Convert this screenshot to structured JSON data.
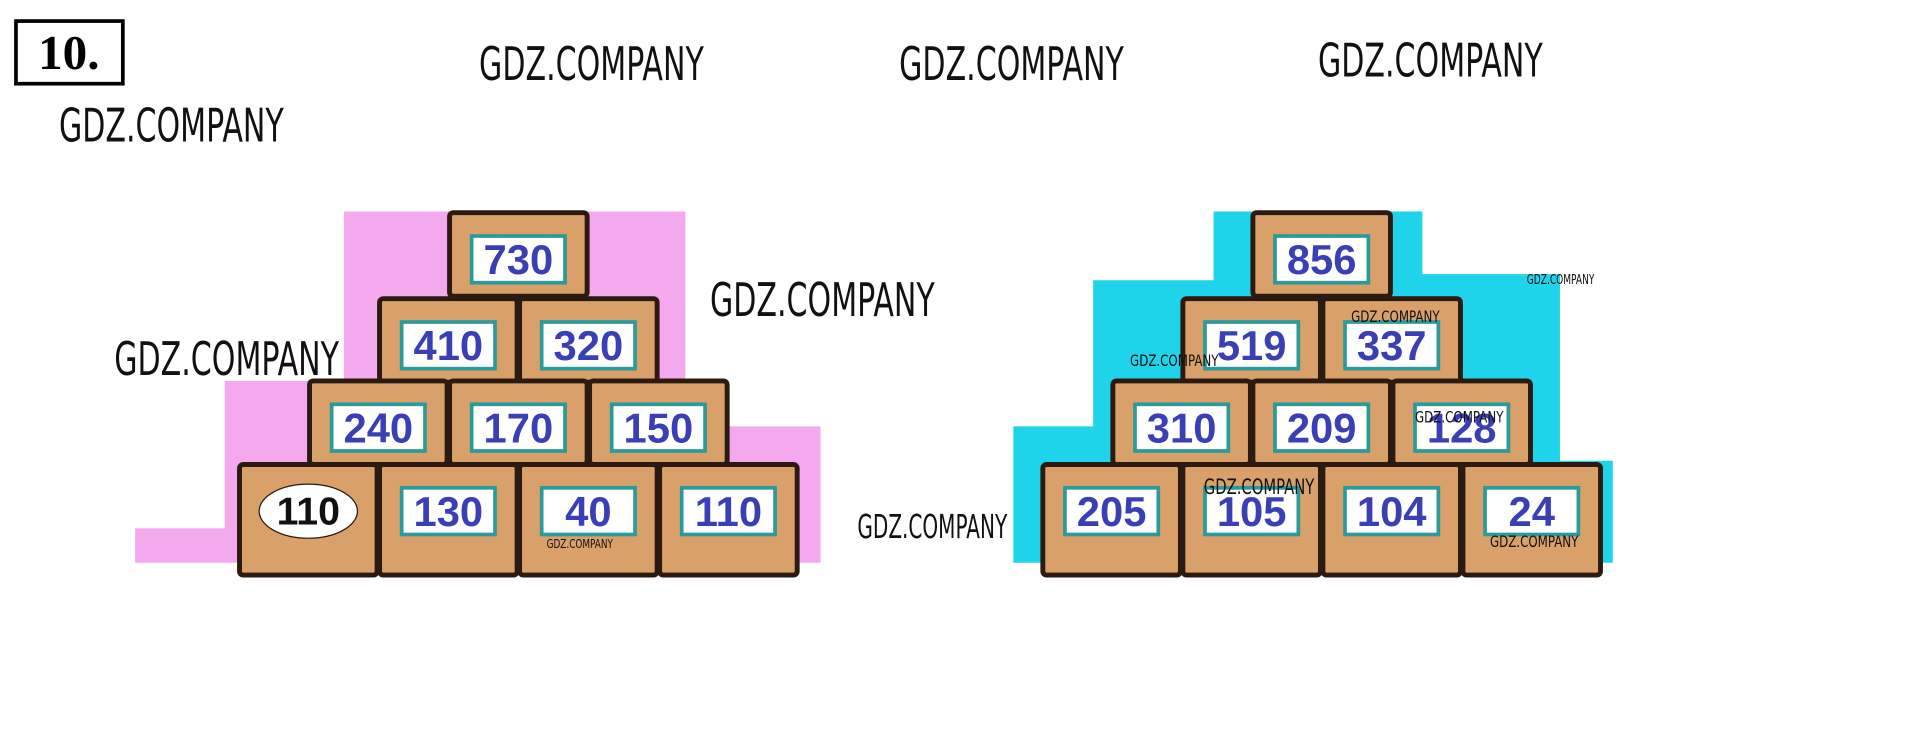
{
  "task": {
    "number": "10."
  },
  "watermarks": [
    "GDZ.COMPANY",
    "GDZ.COMPANY",
    "GDZ.COMPANY",
    "GDZ.COMPANY",
    "GDZ.COMPANY",
    "GDZ.COMPANY",
    "GDZ.COMPANY",
    "GDZ.COMPANY",
    "GDZ.COMPANY",
    "GDZ.COMPANY",
    "GDZ.COMPANY",
    "GDZ.COMPANY",
    "GDZ.COMPANY",
    "GDZ.COMPANY"
  ],
  "pyramids": [
    {
      "rows": [
        [
          730
        ],
        [
          410,
          320
        ],
        [
          240,
          170,
          150
        ],
        [
          110,
          130,
          40,
          110
        ]
      ]
    },
    {
      "rows": [
        [
          856
        ],
        [
          519,
          337
        ],
        [
          310,
          209,
          128
        ],
        [
          205,
          105,
          104,
          24
        ]
      ]
    }
  ]
}
